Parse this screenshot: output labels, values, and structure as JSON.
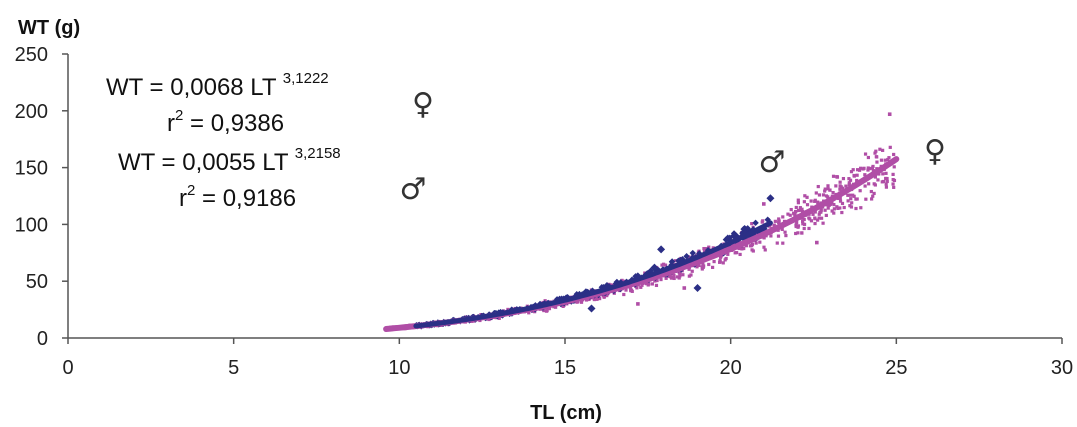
{
  "chart_data": {
    "type": "scatter",
    "xlabel": "TL (cm)",
    "ylabel": "WT (g)",
    "xlim": [
      0,
      30
    ],
    "ylim": [
      0,
      250
    ],
    "xticks": [
      "0",
      "5",
      "10",
      "15",
      "20",
      "25",
      "30"
    ],
    "yticks": [
      "0",
      "50",
      "100",
      "150",
      "200",
      "250"
    ],
    "grid": false,
    "series": [
      {
        "key": "male",
        "color": "#2b2f86",
        "marker": "diamond",
        "fit": {
          "a": 0.0055,
          "b": 3.2158,
          "x_range": [
            10.5,
            21.2
          ]
        },
        "outliers": [
          [
            21.2,
            123
          ],
          [
            17.9,
            78
          ],
          [
            19.0,
            44
          ],
          [
            17.7,
            62
          ],
          [
            15.8,
            26
          ]
        ]
      },
      {
        "key": "female",
        "color": "#b04ea6",
        "marker": "square",
        "fit": {
          "a": 0.0068,
          "b": 3.1222,
          "x_range": [
            9.6,
            25.0
          ]
        },
        "outliers": [
          [
            24.8,
            197
          ],
          [
            21.0,
            118
          ],
          [
            22.6,
            84
          ],
          [
            18.6,
            44
          ],
          [
            17.2,
            30
          ],
          [
            11.2,
            13
          ]
        ]
      }
    ]
  },
  "annotations": {
    "eq1": {
      "prefix": "WT = 0,0068 LT ",
      "exponent": "3,1222"
    },
    "r2_1": {
      "prefix": "r",
      "sup": "2",
      "suffix": " = 0,9386"
    },
    "eq2": {
      "prefix": "WT = 0,0055 LT ",
      "exponent": "3,2158"
    },
    "r2_2": {
      "prefix": "r",
      "sup": "2",
      "suffix": " = 0,9186"
    },
    "female_symbol": "♀",
    "male_symbol": "♂"
  }
}
